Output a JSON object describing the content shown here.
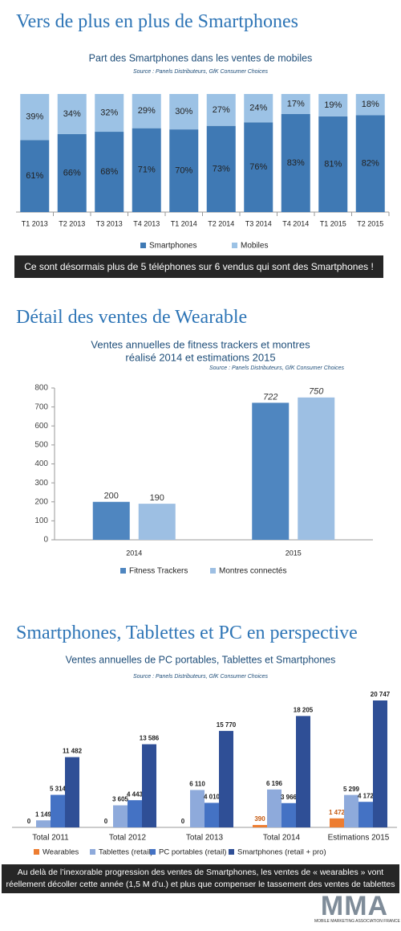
{
  "chart_data": [
    {
      "type": "bar",
      "stacked": true,
      "heading": "Vers de plus en plus de Smartphones",
      "title": "Part des Smartphones dans les ventes de mobiles",
      "source": "Source : Panels Distributeurs, GfK Consumer Choices",
      "categories": [
        "T1 2013",
        "T2 2013",
        "T3 2013",
        "T4 2013",
        "T1 2014",
        "T2 2014",
        "T3 2014",
        "T4 2014",
        "T1 2015",
        "T2 2015"
      ],
      "series": [
        {
          "name": "Smartphones",
          "color": "#3f79b4",
          "values": [
            61,
            66,
            68,
            71,
            70,
            73,
            76,
            83,
            81,
            82
          ],
          "value_labels": [
            "61%",
            "66%",
            "68%",
            "71%",
            "70%",
            "73%",
            "76%",
            "83%",
            "81%",
            "82%"
          ]
        },
        {
          "name": "Mobiles",
          "color": "#9cc2e5",
          "values": [
            39,
            34,
            32,
            29,
            30,
            27,
            24,
            17,
            19,
            18
          ],
          "value_labels": [
            "39%",
            "34%",
            "32%",
            "29%",
            "30%",
            "27%",
            "24%",
            "17%",
            "19%",
            "18%"
          ]
        }
      ],
      "note": "Ce sont désormais plus de 5 téléphones sur 6 vendus qui sont des Smartphones !"
    },
    {
      "type": "bar",
      "heading": "Détail des ventes de Wearable",
      "title": [
        "Ventes annuelles de fitness trackers et montres",
        "réalisé 2014 et estimations 2015"
      ],
      "source": "Source : Panels Distributeurs, GfK Consumer Choices",
      "categories": [
        "2014",
        "2015"
      ],
      "series": [
        {
          "name": "Fitness Trackers",
          "color": "#4f86c0",
          "values": [
            200,
            722
          ]
        },
        {
          "name": "Montres connectés",
          "color": "#9dbfe3",
          "values": [
            190,
            750
          ]
        }
      ],
      "ylim": [
        0,
        800
      ],
      "yticks": [
        0,
        100,
        200,
        300,
        400,
        500,
        600,
        700,
        800
      ],
      "grid": false
    },
    {
      "type": "bar",
      "heading": "Smartphones, Tablettes et PC en perspective",
      "title": "Ventes annuelles de PC portables, Tablettes et Smartphones",
      "source": "Source : Panels Distributeurs, GfK Consumer Choices",
      "categories": [
        "Total 2011",
        "Total 2012",
        "Total 2013",
        "Total 2014",
        "Estimations 2015"
      ],
      "series": [
        {
          "name": "Wearables",
          "color": "#ed7d31",
          "values": [
            0,
            0,
            0,
            390,
            1472
          ],
          "value_labels": [
            "0",
            "0",
            "0",
            "390",
            "1 472"
          ]
        },
        {
          "name": "Tablettes (retail)",
          "color": "#8eaadb",
          "values": [
            1149,
            3605,
            6110,
            6196,
            5299
          ],
          "value_labels": [
            "1 149",
            "3 605",
            "6 110",
            "6 196",
            "5 299"
          ]
        },
        {
          "name": "PC portables (retail)",
          "color": "#4472c4",
          "values": [
            5314,
            4443,
            4010,
            3966,
            4172
          ],
          "value_labels": [
            "5 314",
            "4 443",
            "4 010",
            "3 966",
            "4 172"
          ]
        },
        {
          "name": "Smartphones (retail + pro)",
          "color": "#2f4f96",
          "values": [
            11482,
            13586,
            15770,
            18205,
            20747
          ],
          "value_labels": [
            "11 482",
            "13 586",
            "15 770",
            "18 205",
            "20 747"
          ]
        }
      ],
      "note": "Au delà de l’inexorable progression des ventes de Smartphones, les ventes de « wearables » vont réellement décoller cette année (1,5 M d’u.) et plus que compenser le tassement des ventes de tablettes"
    }
  ],
  "logo": {
    "text": "MMA",
    "subtitle": "MOBILE MARKETING ASSOCIATION FRANCE"
  }
}
